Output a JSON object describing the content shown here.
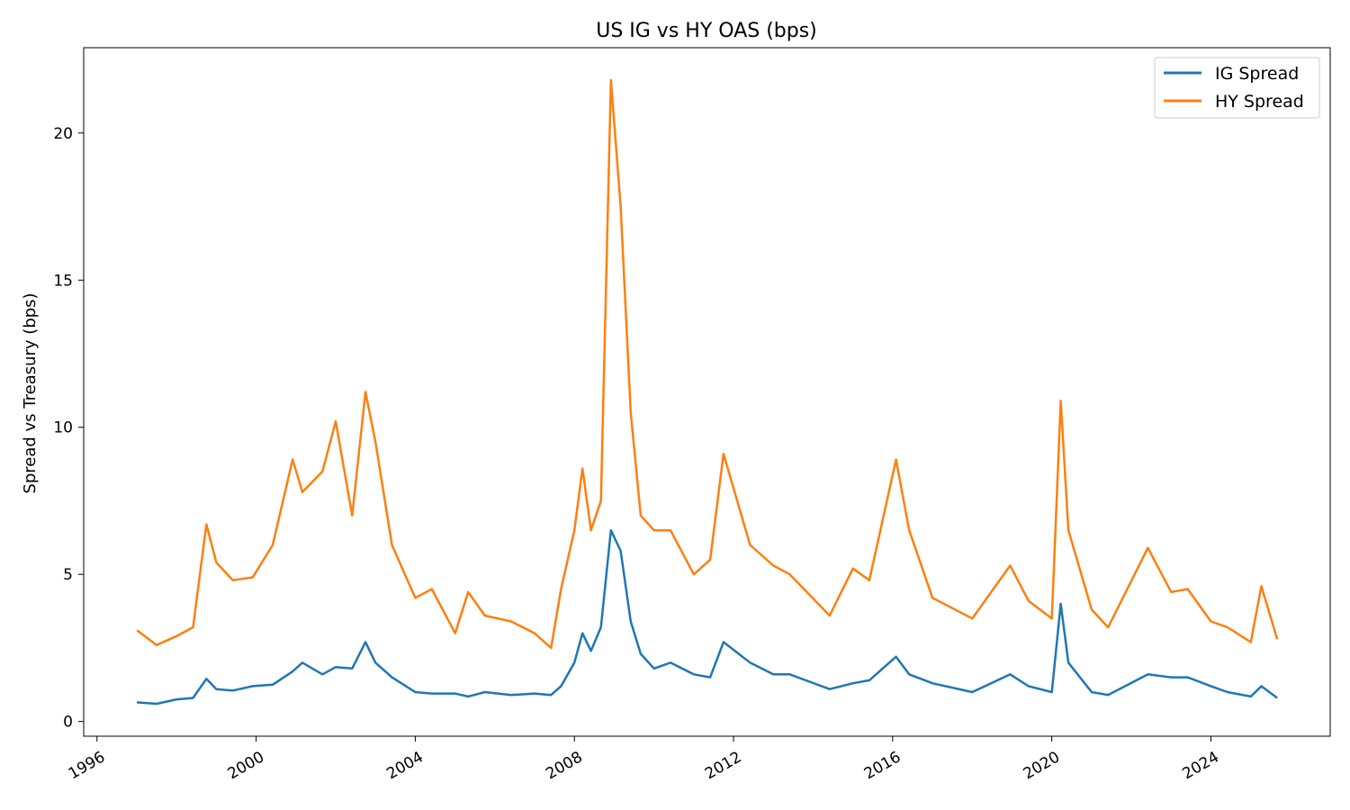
{
  "chart_data": {
    "type": "line",
    "title": "US IG vs HY OAS (bps)",
    "xlabel": "",
    "ylabel": "Spread vs Treasury (bps)",
    "x_axis_type": "date",
    "xlim": [
      "1995-09-01",
      "2026-12-31"
    ],
    "ylim": [
      -0.5,
      22.9
    ],
    "x_ticks": [
      "1996",
      "2000",
      "2004",
      "2008",
      "2012",
      "2016",
      "2020",
      "2024"
    ],
    "y_ticks": [
      0,
      5,
      10,
      15,
      20
    ],
    "grid": false,
    "legend_position": "upper right",
    "x": [
      "1997-01-01",
      "1997-07-01",
      "1998-01-01",
      "1998-06-01",
      "1998-10-01",
      "1999-01-01",
      "1999-06-01",
      "1999-12-01",
      "2000-06-01",
      "2000-12-01",
      "2001-03-01",
      "2001-09-01",
      "2002-01-01",
      "2002-06-01",
      "2002-10-01",
      "2003-01-01",
      "2003-06-01",
      "2004-01-01",
      "2004-06-01",
      "2005-01-01",
      "2005-05-01",
      "2005-10-01",
      "2006-06-01",
      "2007-01-01",
      "2007-06-01",
      "2007-09-01",
      "2008-01-01",
      "2008-03-15",
      "2008-06-01",
      "2008-09-01",
      "2008-12-01",
      "2009-03-01",
      "2009-06-01",
      "2009-09-01",
      "2010-01-01",
      "2010-06-01",
      "2011-01-01",
      "2011-06-01",
      "2011-10-01",
      "2012-06-01",
      "2013-01-01",
      "2013-06-01",
      "2014-06-01",
      "2015-01-01",
      "2015-06-01",
      "2016-02-01",
      "2016-06-01",
      "2017-01-01",
      "2018-01-01",
      "2018-12-15",
      "2019-06-01",
      "2020-01-01",
      "2020-03-23",
      "2020-06-01",
      "2021-01-01",
      "2021-06-01",
      "2022-06-01",
      "2023-01-01",
      "2023-06-01",
      "2024-01-01",
      "2024-06-01",
      "2025-01-01",
      "2025-04-08",
      "2025-08-31"
    ],
    "series": [
      {
        "name": "IG Spread",
        "color": "#1f77b4",
        "values": [
          0.65,
          0.6,
          0.75,
          0.8,
          1.45,
          1.1,
          1.05,
          1.2,
          1.25,
          1.7,
          2.0,
          1.6,
          1.85,
          1.8,
          2.7,
          2.0,
          1.5,
          1.0,
          0.95,
          0.95,
          0.85,
          1.0,
          0.9,
          0.95,
          0.9,
          1.2,
          2.0,
          3.0,
          2.4,
          3.2,
          6.5,
          5.8,
          3.4,
          2.3,
          1.8,
          2.0,
          1.6,
          1.5,
          2.7,
          2.0,
          1.6,
          1.6,
          1.1,
          1.3,
          1.4,
          2.2,
          1.6,
          1.3,
          1.0,
          1.6,
          1.2,
          1.0,
          4.0,
          2.0,
          1.0,
          0.9,
          1.6,
          1.5,
          1.5,
          1.2,
          1.0,
          0.85,
          1.2,
          0.8
        ]
      },
      {
        "name": "HY Spread",
        "color": "#ff7f0e",
        "values": [
          3.1,
          2.6,
          2.9,
          3.2,
          6.7,
          5.4,
          4.8,
          4.9,
          6.0,
          8.9,
          7.8,
          8.5,
          10.2,
          7.0,
          11.2,
          9.5,
          6.0,
          4.2,
          4.5,
          3.0,
          4.4,
          3.6,
          3.4,
          3.0,
          2.5,
          4.5,
          6.5,
          8.6,
          6.5,
          7.5,
          21.8,
          17.5,
          10.5,
          7.0,
          6.5,
          6.5,
          5.0,
          5.5,
          9.1,
          6.0,
          5.3,
          5.0,
          3.6,
          5.2,
          4.8,
          8.9,
          6.5,
          4.2,
          3.5,
          5.3,
          4.1,
          3.5,
          10.9,
          6.5,
          3.8,
          3.2,
          5.9,
          4.4,
          4.5,
          3.4,
          3.2,
          2.7,
          4.6,
          2.8
        ]
      }
    ]
  }
}
